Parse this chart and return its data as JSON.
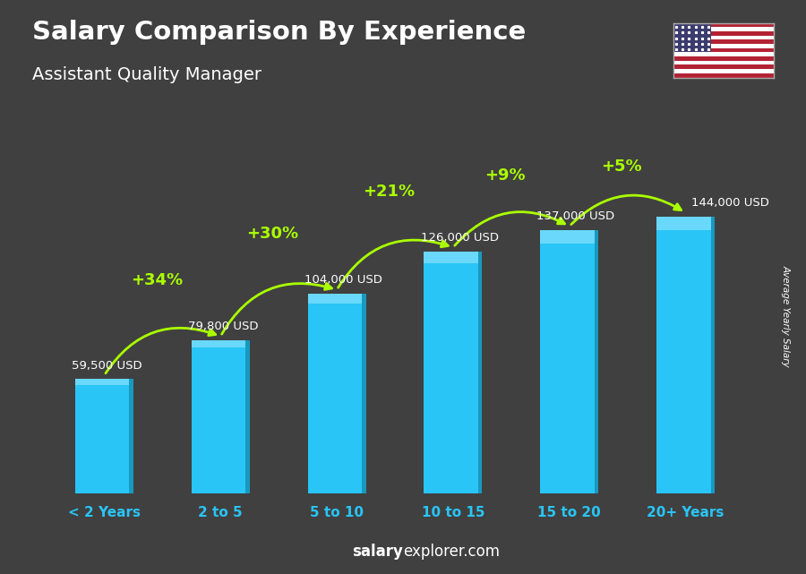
{
  "title": "Salary Comparison By Experience",
  "subtitle": "Assistant Quality Manager",
  "categories": [
    "< 2 Years",
    "2 to 5",
    "5 to 10",
    "10 to 15",
    "15 to 20",
    "20+ Years"
  ],
  "values": [
    59500,
    79800,
    104000,
    126000,
    137000,
    144000
  ],
  "labels": [
    "59,500 USD",
    "79,800 USD",
    "104,000 USD",
    "126,000 USD",
    "137,000 USD",
    "144,000 USD"
  ],
  "label_offsets_x": [
    -0.28,
    -0.28,
    -0.28,
    -0.28,
    -0.28,
    0.05
  ],
  "label_offsets_y": [
    4000,
    4000,
    4000,
    4000,
    4000,
    4000
  ],
  "pct_changes": [
    "+34%",
    "+30%",
    "+21%",
    "+9%",
    "+5%"
  ],
  "bar_color_main": "#29C5F6",
  "bar_color_light": "#7ADDFD",
  "bar_color_dark": "#1899C0",
  "pct_color": "#AAFF00",
  "text_color": "#FFFFFF",
  "bg_color": "#404040",
  "title_color": "#FFFFFF",
  "subtitle_color": "#FFFFFF",
  "watermark_bold": "salary",
  "watermark_rest": "explorer.com",
  "ylabel": "Average Yearly Salary",
  "ylim_max": 185000,
  "tick_color": "#29C5F6",
  "flag_stripe_red": "#B22234",
  "flag_blue": "#3C3B6E"
}
